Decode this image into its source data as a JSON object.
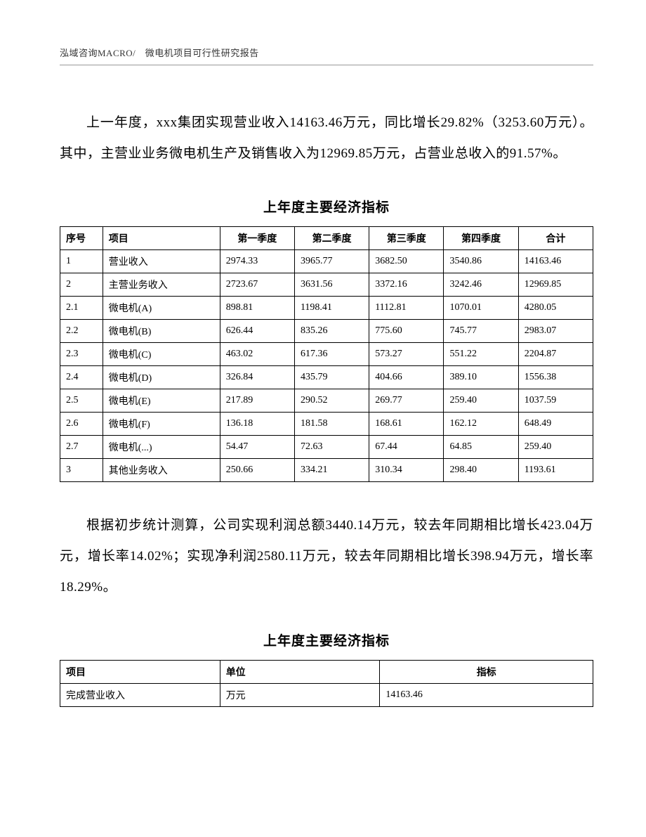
{
  "header": {
    "text": "泓域咨询MACRO/　微电机项目可行性研究报告"
  },
  "paragraph1": "上一年度，xxx集团实现营业收入14163.46万元，同比增长29.82%（3253.60万元）。其中，主营业业务微电机生产及销售收入为12969.85万元，占营业总收入的91.57%。",
  "table1": {
    "title": "上年度主要经济指标",
    "columns": [
      "序号",
      "项目",
      "第一季度",
      "第二季度",
      "第三季度",
      "第四季度",
      "合计"
    ],
    "rows": [
      [
        "1",
        "营业收入",
        "2974.33",
        "3965.77",
        "3682.50",
        "3540.86",
        "14163.46"
      ],
      [
        "2",
        "主营业务收入",
        "2723.67",
        "3631.56",
        "3372.16",
        "3242.46",
        "12969.85"
      ],
      [
        "2.1",
        "微电机(A)",
        "898.81",
        "1198.41",
        "1112.81",
        "1070.01",
        "4280.05"
      ],
      [
        "2.2",
        "微电机(B)",
        "626.44",
        "835.26",
        "775.60",
        "745.77",
        "2983.07"
      ],
      [
        "2.3",
        "微电机(C)",
        "463.02",
        "617.36",
        "573.27",
        "551.22",
        "2204.87"
      ],
      [
        "2.4",
        "微电机(D)",
        "326.84",
        "435.79",
        "404.66",
        "389.10",
        "1556.38"
      ],
      [
        "2.5",
        "微电机(E)",
        "217.89",
        "290.52",
        "269.77",
        "259.40",
        "1037.59"
      ],
      [
        "2.6",
        "微电机(F)",
        "136.18",
        "181.58",
        "168.61",
        "162.12",
        "648.49"
      ],
      [
        "2.7",
        "微电机(...)",
        "54.47",
        "72.63",
        "67.44",
        "64.85",
        "259.40"
      ],
      [
        "3",
        "其他业务收入",
        "250.66",
        "334.21",
        "310.34",
        "298.40",
        "1193.61"
      ]
    ]
  },
  "paragraph2": "根据初步统计测算，公司实现利润总额3440.14万元，较去年同期相比增长423.04万元，增长率14.02%；实现净利润2580.11万元，较去年同期相比增长398.94万元，增长率18.29%。",
  "table2": {
    "title": "上年度主要经济指标",
    "columns": [
      "项目",
      "单位",
      "指标"
    ],
    "rows": [
      [
        "完成营业收入",
        "万元",
        "14163.46"
      ]
    ]
  }
}
